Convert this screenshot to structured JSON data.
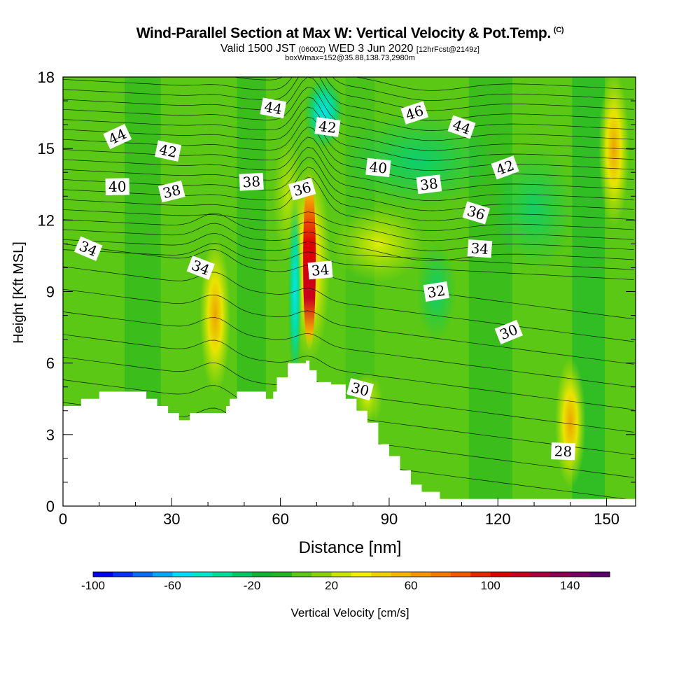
{
  "header": {
    "title": "Wind-Parallel Section at Max W: Vertical Velocity & Pot.Temp.",
    "copyright": "(C)",
    "valid_prefix": "Valid 1500 JST",
    "valid_utc": "(0600Z)",
    "valid_date": "WED 3 Jun 2020",
    "forecast": "[12hrFcst@2149z]",
    "box_info": "boxWmax=152@35.88,138.73,2980m"
  },
  "chart_data": {
    "type": "heatmap",
    "xlabel": "Distance [nm]",
    "ylabel": "Height [Kft MSL]",
    "xlim": [
      0,
      158
    ],
    "ylim": [
      0,
      18
    ],
    "x_ticks": [
      "0",
      "30",
      "60",
      "90",
      "120",
      "150"
    ],
    "y_ticks": [
      "0",
      "3",
      "6",
      "9",
      "12",
      "15",
      "18"
    ],
    "colorbar": {
      "label": "Vertical Velocity [cm/s]",
      "range": [
        -100,
        160
      ],
      "tick_labels": [
        "-100",
        "-60",
        "-20",
        "20",
        "60",
        "100",
        "140"
      ],
      "colors": [
        "#0000f0",
        "#0a32f5",
        "#0a6ef5",
        "#06a6f8",
        "#00dcf8",
        "#00e6c8",
        "#00dc96",
        "#00c864",
        "#10b432",
        "#22b422",
        "#5ac814",
        "#8cd20a",
        "#c8e600",
        "#f0f000",
        "#f0d200",
        "#f5b400",
        "#f59600",
        "#f57800",
        "#f55a00",
        "#e62800",
        "#dc0000",
        "#c8001e",
        "#aa003c",
        "#8c0050",
        "#780064",
        "#5a006e"
      ]
    },
    "topography_kft": [
      [
        0,
        4.2
      ],
      [
        5,
        4.5
      ],
      [
        10,
        4.8
      ],
      [
        22,
        4.8
      ],
      [
        23,
        4.5
      ],
      [
        26,
        4.2
      ],
      [
        29,
        3.9
      ],
      [
        32,
        3.6
      ],
      [
        35,
        3.9
      ],
      [
        40,
        3.9
      ],
      [
        45,
        4.2
      ],
      [
        46,
        4.5
      ],
      [
        48,
        4.8
      ],
      [
        55,
        4.8
      ],
      [
        56,
        4.5
      ],
      [
        58,
        4.8
      ],
      [
        59,
        5.4
      ],
      [
        62,
        6.0
      ],
      [
        67,
        6.1
      ],
      [
        68,
        5.7
      ],
      [
        70,
        5.2
      ],
      [
        74,
        5.1
      ],
      [
        78,
        4.5
      ],
      [
        81,
        4.0
      ],
      [
        84,
        3.5
      ],
      [
        87,
        2.6
      ],
      [
        90,
        2.1
      ],
      [
        93,
        1.5
      ],
      [
        96,
        0.9
      ],
      [
        99,
        0.6
      ],
      [
        104,
        0.3
      ],
      [
        158,
        0.3
      ]
    ],
    "vertical_velocity_features": [
      {
        "x": 68,
        "z_range": [
          6.5,
          14
        ],
        "w_max": 152,
        "sign": "updraft"
      },
      {
        "x": 42,
        "z_range": [
          5,
          11
        ],
        "w_max": 60,
        "sign": "updraft"
      },
      {
        "x": 72,
        "z_range": [
          15,
          18
        ],
        "w_min": -80,
        "sign": "downdraft"
      },
      {
        "x": 64,
        "z_range": [
          5,
          13
        ],
        "w_min": -60,
        "sign": "downdraft"
      },
      {
        "x": 140,
        "z_range": [
          1,
          6
        ],
        "w_max": 40,
        "sign": "updraft"
      },
      {
        "x": 152,
        "z_range": [
          12,
          18
        ],
        "w_max": 60,
        "sign": "updraft"
      }
    ],
    "isentrope_labels": [
      {
        "text": "44",
        "x": 15,
        "z": 15.5
      },
      {
        "text": "42",
        "x": 29,
        "z": 14.9
      },
      {
        "text": "40",
        "x": 15,
        "z": 13.4
      },
      {
        "text": "38",
        "x": 30,
        "z": 13.2
      },
      {
        "text": "34",
        "x": 7,
        "z": 10.8
      },
      {
        "text": "44",
        "x": 58,
        "z": 16.7
      },
      {
        "text": "38",
        "x": 52,
        "z": 13.6
      },
      {
        "text": "36",
        "x": 66,
        "z": 13.3
      },
      {
        "text": "34",
        "x": 38,
        "z": 10.0
      },
      {
        "text": "42",
        "x": 73,
        "z": 15.9
      },
      {
        "text": "34",
        "x": 71,
        "z": 9.9
      },
      {
        "text": "46",
        "x": 97,
        "z": 16.5
      },
      {
        "text": "44",
        "x": 110,
        "z": 15.9
      },
      {
        "text": "40",
        "x": 87,
        "z": 14.2
      },
      {
        "text": "38",
        "x": 101,
        "z": 13.5
      },
      {
        "text": "42",
        "x": 122,
        "z": 14.2
      },
      {
        "text": "36",
        "x": 114,
        "z": 12.3
      },
      {
        "text": "34",
        "x": 115,
        "z": 10.8
      },
      {
        "text": "32",
        "x": 103,
        "z": 9.0
      },
      {
        "text": "30",
        "x": 123,
        "z": 7.3
      },
      {
        "text": "30",
        "x": 82,
        "z": 4.9
      },
      {
        "text": "28",
        "x": 138,
        "z": 2.3
      }
    ]
  }
}
